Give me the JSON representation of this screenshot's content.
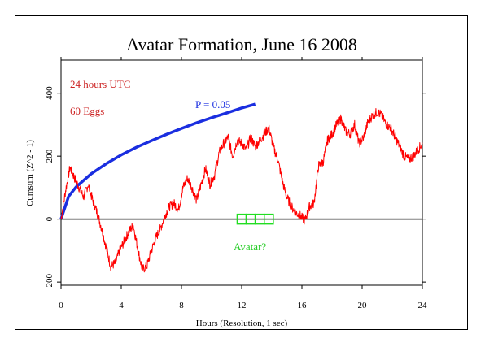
{
  "chart_data": {
    "type": "line",
    "title": "Avatar Formation, June 16 2008",
    "xlabel": "Hours (Resolution, 1 sec)",
    "ylabel": "Cumsum (Z^2 - 1)",
    "xlim": [
      0,
      24
    ],
    "ylim": [
      -210,
      505
    ],
    "xticks": [
      0,
      4,
      8,
      12,
      16,
      20,
      24
    ],
    "yticks": [
      -200,
      0,
      200,
      400
    ],
    "grid": false,
    "colors": {
      "cumsum": "#ff0000",
      "p_envelope": "#1a2ee0",
      "baseline": "#000000",
      "marker": "#22dd22"
    },
    "annotations": [
      {
        "text": "24 hours UTC",
        "color": "#cc2222"
      },
      {
        "text": "60 Eggs",
        "color": "#cc2222"
      },
      {
        "text": "P = 0.05",
        "color": "#1a2ee0"
      },
      {
        "text": "Avatar?",
        "color": "#22cc22"
      }
    ],
    "baseline_y": 0,
    "p_envelope": {
      "x": [
        0,
        0.5,
        1,
        2,
        3,
        4,
        5,
        6,
        7,
        8,
        9,
        10,
        11,
        12,
        12.9
      ],
      "y": [
        0,
        72,
        102,
        144,
        176,
        204,
        228,
        249,
        269,
        288,
        306,
        322,
        337,
        353,
        365
      ]
    },
    "event_markers_x": [
      11.7,
      12.3,
      12.9,
      13.5,
      14.1
    ],
    "series": [
      {
        "x": [
          0,
          0.3,
          0.6,
          0.9,
          1.2,
          1.5,
          1.8,
          2.1,
          2.4,
          2.7,
          3.0,
          3.3,
          3.6,
          3.9,
          4.2,
          4.5,
          4.8,
          5.1,
          5.4,
          5.7,
          6.0,
          6.3,
          6.6,
          6.9,
          7.2,
          7.5,
          7.8,
          8.1,
          8.4,
          8.7,
          9.0,
          9.3,
          9.6,
          9.9,
          10.2,
          10.5,
          10.8,
          11.1,
          11.4,
          11.7,
          12.0,
          12.3,
          12.6,
          12.9,
          13.2,
          13.5,
          13.8,
          14.1,
          14.4,
          14.7,
          15.0,
          15.3,
          15.6,
          15.9,
          16.2,
          16.5,
          16.8,
          17.1,
          17.4,
          17.7,
          18.0,
          18.3,
          18.6,
          18.9,
          19.2,
          19.5,
          19.8,
          20.1,
          20.4,
          20.7,
          21.0,
          21.3,
          21.6,
          21.9,
          22.2,
          22.5,
          22.8,
          23.1,
          23.4,
          23.7,
          24.0
        ],
        "y": [
          0,
          90,
          165,
          130,
          100,
          70,
          110,
          60,
          20,
          -30,
          -90,
          -150,
          -140,
          -100,
          -70,
          -40,
          -20,
          -95,
          -160,
          -150,
          -100,
          -60,
          -30,
          10,
          40,
          50,
          30,
          100,
          130,
          100,
          60,
          110,
          160,
          110,
          140,
          210,
          240,
          260,
          200,
          250,
          240,
          220,
          260,
          230,
          250,
          270,
          290,
          230,
          190,
          120,
          70,
          40,
          20,
          10,
          -5,
          40,
          50,
          170,
          180,
          250,
          270,
          300,
          320,
          280,
          270,
          300,
          240,
          260,
          310,
          330,
          340,
          330,
          300,
          290,
          260,
          230,
          200,
          190,
          200,
          220,
          240
        ]
      }
    ]
  }
}
